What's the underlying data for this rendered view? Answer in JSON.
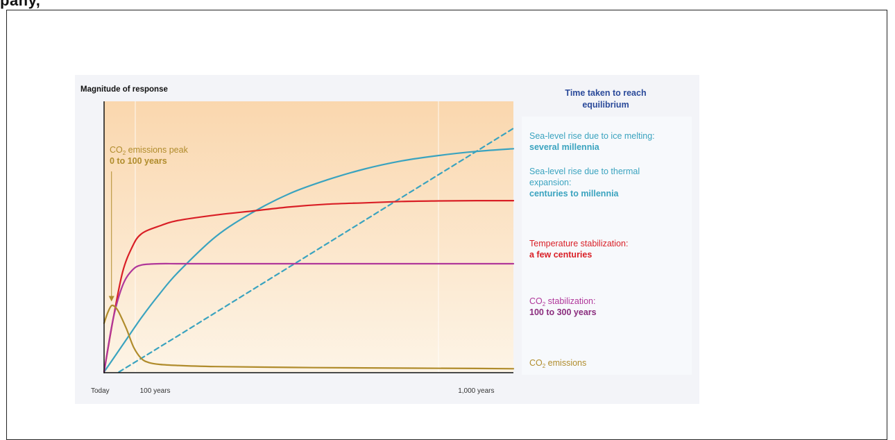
{
  "page_title": "pany,",
  "chart_data": {
    "type": "line",
    "ylabel": "Magnitude of response",
    "legend_title": "Time taken to reach equilibrium",
    "x_ticks": [
      {
        "label": "Today",
        "x": 0
      },
      {
        "label": "100 years",
        "x": 100
      },
      {
        "label": "1,000 years",
        "x": 1000
      }
    ],
    "xlim": [
      0,
      1100
    ],
    "ylim": [
      0,
      1
    ],
    "colors": {
      "co2_emissions": "#b08c2c",
      "co2_stabilization": "#b0379a",
      "temperature": "#d91f26",
      "sea_thermal": "#3aa3bf",
      "sea_ice": "#3aa3bf",
      "background_top": "#fad7ae",
      "background_bottom": "#fdf4e6"
    },
    "series": [
      {
        "key": "sea_ice",
        "dashed": true,
        "x": [
          40,
          200,
          400,
          600,
          800,
          1000,
          1100
        ],
        "y": [
          0.0,
          0.135,
          0.305,
          0.475,
          0.645,
          0.815,
          0.9
        ]
      },
      {
        "key": "sea_thermal",
        "x": [
          0,
          50,
          100,
          150,
          200,
          300,
          400,
          500,
          600,
          700,
          800,
          900,
          1000,
          1100
        ],
        "y": [
          0.0,
          0.1,
          0.2,
          0.29,
          0.37,
          0.5,
          0.59,
          0.66,
          0.71,
          0.75,
          0.78,
          0.8,
          0.815,
          0.825
        ]
      },
      {
        "key": "temperature",
        "x": [
          0,
          25,
          50,
          75,
          100,
          150,
          200,
          300,
          400,
          500,
          600,
          700,
          800,
          900,
          1000,
          1100
        ],
        "y": [
          0.0,
          0.2,
          0.37,
          0.46,
          0.51,
          0.54,
          0.56,
          0.58,
          0.595,
          0.61,
          0.62,
          0.625,
          0.63,
          0.632,
          0.633,
          0.633
        ]
      },
      {
        "key": "co2_stabilization",
        "x": [
          0,
          25,
          50,
          75,
          100,
          150,
          200,
          300,
          400,
          600,
          800,
          1000,
          1100
        ],
        "y": [
          0.0,
          0.2,
          0.32,
          0.375,
          0.395,
          0.4,
          0.4,
          0.4,
          0.4,
          0.4,
          0.4,
          0.4,
          0.4
        ]
      },
      {
        "key": "co2_emissions",
        "x": [
          0,
          10,
          20,
          30,
          40,
          60,
          80,
          100,
          120,
          150,
          200,
          300,
          500,
          700,
          1000,
          1100
        ],
        "y": [
          0.18,
          0.22,
          0.245,
          0.24,
          0.22,
          0.16,
          0.09,
          0.05,
          0.035,
          0.028,
          0.024,
          0.02,
          0.017,
          0.015,
          0.013,
          0.012
        ]
      }
    ],
    "peak_annotation": {
      "line1_a": "CO",
      "line1_sub": "2",
      "line1_b": " emissions peak",
      "line2": "0 to 100 years",
      "x": 20
    },
    "annotations": {
      "sea_ice": {
        "line1": "Sea-level rise due to ice melting:",
        "line2": "several millennia"
      },
      "sea_thermal": {
        "line1": "Sea-level rise due to thermal",
        "line2": "expansion:",
        "line3": "centuries to millennia"
      },
      "temperature": {
        "line1": "Temperature stabilization:",
        "line2": "a few centuries"
      },
      "co2_stabilization": {
        "line1_a": "CO",
        "line1_sub": "2",
        "line1_b": " stabilization:",
        "line2": "100 to 300 years"
      },
      "co2_emissions": {
        "line1_a": "CO",
        "line1_sub": "2",
        "line1_b": " emissions"
      }
    }
  }
}
